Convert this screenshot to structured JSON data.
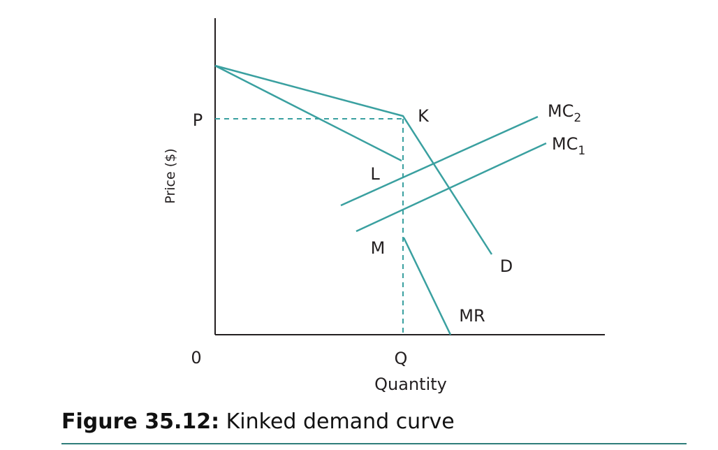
{
  "diagram": {
    "axes": {
      "y_label": "Price ($)",
      "x_label": "Quantity",
      "origin_label": "0",
      "price_tick_label": "P",
      "quantity_tick_label": "Q"
    },
    "curve_labels": {
      "kink": "K",
      "mr_upper_end": "L",
      "mr_lower_start": "M",
      "demand": "D",
      "marginal_revenue": "MR"
    },
    "cost_curves": {
      "mc2": {
        "label": "MC",
        "subscript": "2"
      },
      "mc1": {
        "label": "MC",
        "subscript": "1"
      }
    },
    "colors": {
      "curve": "#3aa0a0",
      "axis": "#231f20"
    }
  },
  "caption": {
    "prefix": "Figure 35.12:",
    "text": " Kinked demand curve"
  }
}
